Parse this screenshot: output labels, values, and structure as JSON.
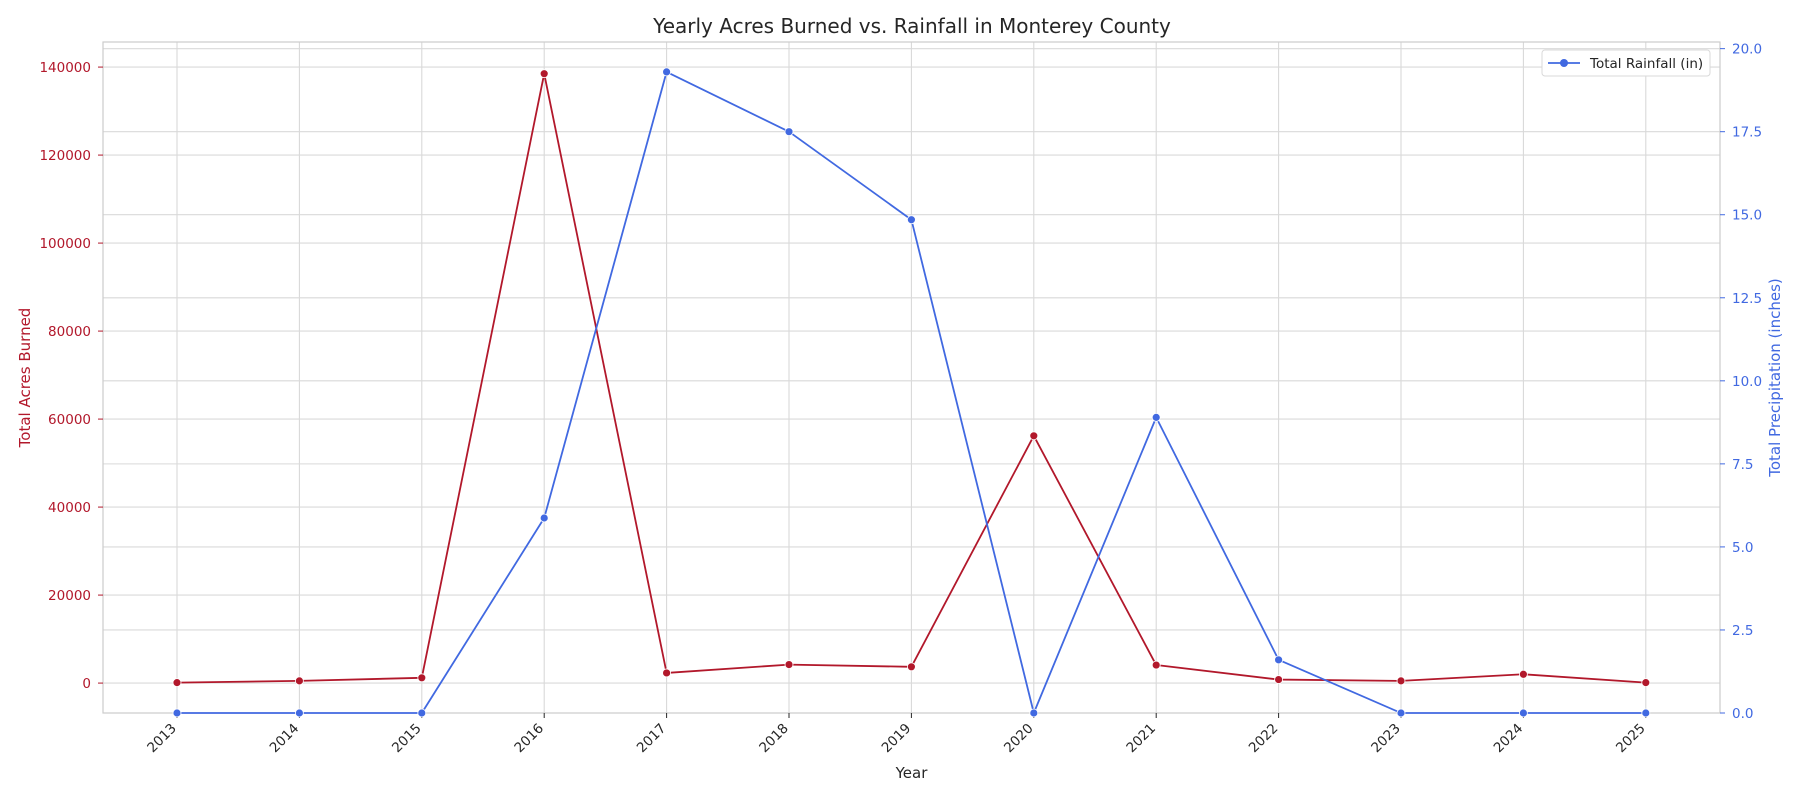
{
  "chart_data": {
    "type": "line",
    "title": "Yearly Acres Burned vs. Rainfall in Monterey County",
    "xlabel": "Year",
    "ylabel_left": "Total Acres Burned",
    "ylabel_right": "Total Precipitation (inches)",
    "x": [
      "2013",
      "2014",
      "2015",
      "2016",
      "2017",
      "2018",
      "2019",
      "2020",
      "2021",
      "2022",
      "2023",
      "2024",
      "2025"
    ],
    "left_axis": {
      "ylim": [
        -6800,
        145700
      ],
      "ticks": [
        0,
        20000,
        40000,
        60000,
        80000,
        100000,
        120000,
        140000
      ],
      "color": "#b2182b"
    },
    "right_axis": {
      "ylim": [
        0,
        20.2
      ],
      "ticks": [
        "0.0",
        "2.5",
        "5.0",
        "7.5",
        "10.0",
        "12.5",
        "15.0",
        "17.5",
        "20.0"
      ],
      "color": "#4169e1"
    },
    "series": [
      {
        "axis": "left",
        "color": "#b2182b",
        "values": [
          100,
          500,
          1200,
          138500,
          2300,
          4200,
          3700,
          56200,
          4100,
          800,
          500,
          2000,
          100
        ]
      },
      {
        "name": "Total Rainfall (in)",
        "axis": "right",
        "color": "#4169e1",
        "values": [
          0.0,
          0.0,
          0.0,
          5.87,
          19.3,
          17.5,
          14.85,
          0.0,
          8.9,
          1.6,
          0.0,
          0.0,
          0.0
        ]
      }
    ],
    "grid": true,
    "legend": "top-right"
  }
}
